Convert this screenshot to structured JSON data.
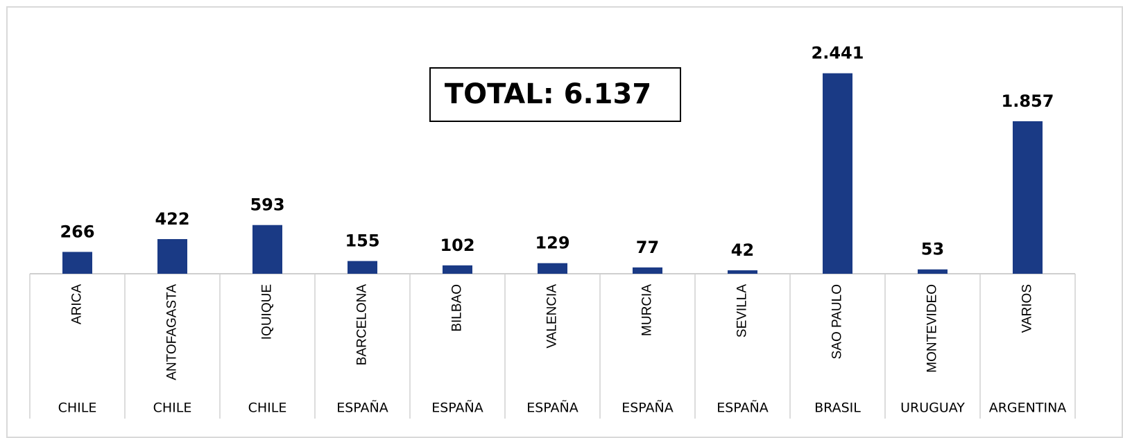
{
  "chart_data": {
    "type": "bar",
    "annotation": "TOTAL: 6.137",
    "categories": [
      "ARICA",
      "ANTOFAGASTA",
      "IQUIQUE",
      "BARCELONA",
      "BILBAO",
      "VALENCIA",
      "MURCIA",
      "SEVILLA",
      "SAO PAULO",
      "MONTEVIDEO",
      "VARIOS"
    ],
    "groups": [
      "CHILE",
      "CHILE",
      "CHILE",
      "ESPAÑA",
      "ESPAÑA",
      "ESPAÑA",
      "ESPAÑA",
      "ESPAÑA",
      "BRASIL",
      "URUGUAY",
      "ARGENTINA"
    ],
    "values": [
      266,
      422,
      593,
      155,
      102,
      129,
      77,
      42,
      2441,
      53,
      1857
    ],
    "value_labels": [
      "266",
      "422",
      "593",
      "155",
      "102",
      "129",
      "77",
      "42",
      "2.441",
      "53",
      "1.857"
    ],
    "color": "#1a3a85",
    "ylim": [
      0,
      2700
    ]
  }
}
